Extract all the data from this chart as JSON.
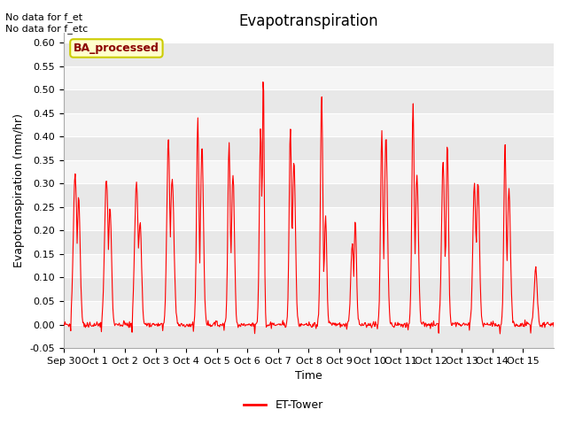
{
  "title": "Evapotranspiration",
  "xlabel": "Time",
  "ylabel": "Evapotranspiration (mm/hr)",
  "ylim": [
    -0.05,
    0.62
  ],
  "yticks": [
    -0.05,
    0.0,
    0.05,
    0.1,
    0.15,
    0.2,
    0.25,
    0.3,
    0.35,
    0.4,
    0.45,
    0.5,
    0.55,
    0.6
  ],
  "line_color": "#ff0000",
  "line_width": 0.8,
  "fig_facecolor": "#ffffff",
  "plot_bg_color": "#e8e8e8",
  "annotation_text": "No data for f_et\nNo data for f_etc",
  "legend_label": "ET-Tower",
  "box_label": "BA_processed",
  "box_facecolor": "#ffffcc",
  "box_edgecolor": "#cccc00",
  "box_text_color": "#8b0000",
  "num_days": 16,
  "tick_labels": [
    "Sep 30",
    "Oct 1",
    "Oct 2",
    "Oct 3",
    "Oct 4",
    "Oct 5",
    "Oct 6",
    "Oct 7",
    "Oct 8",
    "Oct 9",
    "Oct 10",
    "Oct 11",
    "Oct 12",
    "Oct 13",
    "Oct 14",
    "Oct 15"
  ],
  "title_fontsize": 12,
  "axis_fontsize": 9,
  "tick_fontsize": 8,
  "annot_fontsize": 8
}
